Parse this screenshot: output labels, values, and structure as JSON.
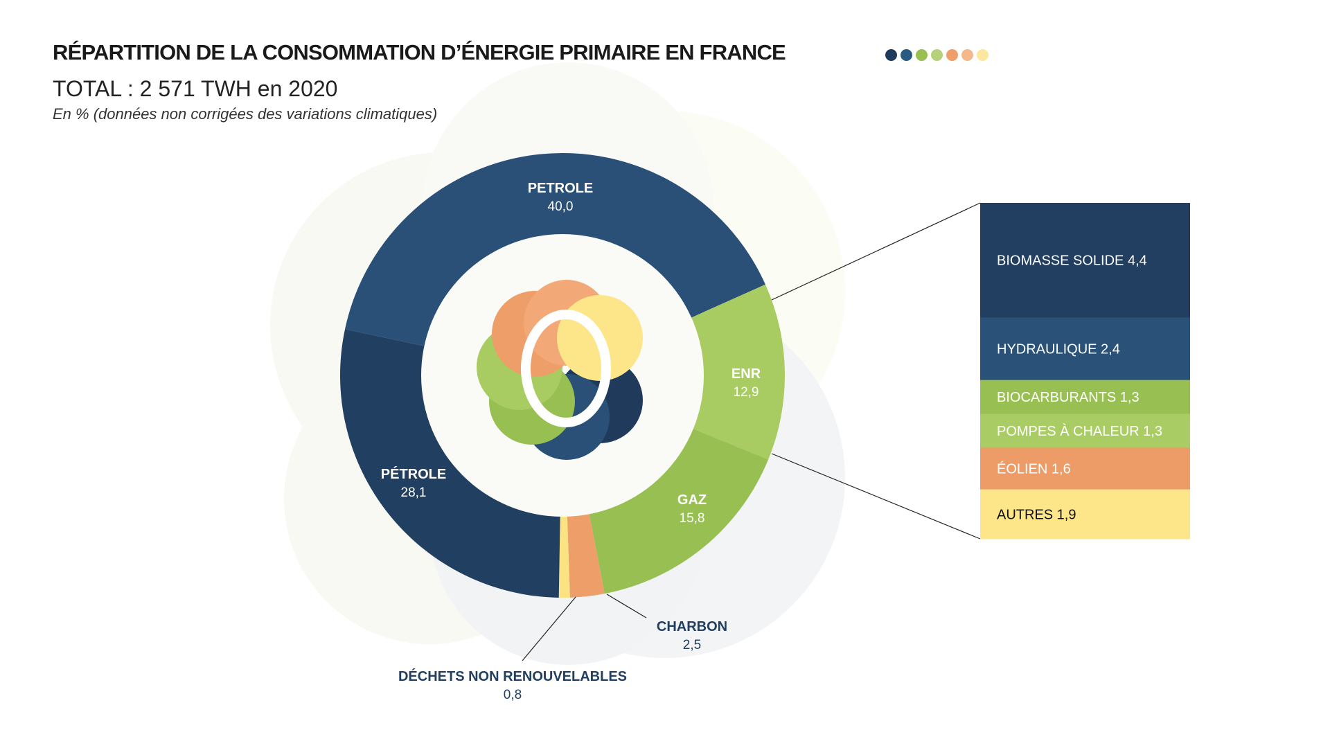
{
  "chart_data": {
    "type": "pie",
    "title": "RÉPARTITION DE LA CONSOMMATION D’ÉNERGIE PRIMAIRE EN FRANCE",
    "subtitle": "TOTAL : 2 571 TWH en 2020",
    "note": "En % (données non corrigées des variations climatiques)",
    "unit": "%",
    "slices": [
      {
        "label": "PETROLE",
        "value": "40,0",
        "v": 40.0,
        "color": "#2a5077"
      },
      {
        "label": "ENR",
        "value": "12,9",
        "v": 12.9,
        "color": "#a8cc62"
      },
      {
        "label": "GAZ",
        "value": "15,8",
        "v": 15.8,
        "color": "#97bf52"
      },
      {
        "label": "CHARBON",
        "value": "2,5",
        "v": 2.5,
        "color": "#ee9e68"
      },
      {
        "label": "DÉCHETS NON RENOUVELABLES",
        "value": "0,8",
        "v": 0.8,
        "color": "#fbe383"
      },
      {
        "label": "PÉTROLE",
        "value": "28,1",
        "v": 28.1,
        "color": "#213f60"
      }
    ],
    "breakdown_of": "ENR",
    "breakdown": [
      {
        "text": "BIOMASSE SOLIDE 4,4",
        "v": 4.4,
        "color": "#223f61",
        "textColor": "#ffffff"
      },
      {
        "text": "HYDRAULIQUE 2,4",
        "v": 2.4,
        "color": "#2a5177",
        "textColor": "#ffffff"
      },
      {
        "text": "BIOCARBURANTS 1,3",
        "v": 1.3,
        "color": "#98bf52",
        "textColor": "#ffffff"
      },
      {
        "text": "POMPES À CHALEUR 1,3",
        "v": 1.3,
        "color": "#a9cd64",
        "textColor": "#ffffff"
      },
      {
        "text": "ÉOLIEN 1,6",
        "v": 1.6,
        "color": "#ed9c68",
        "textColor": "#ffffff"
      },
      {
        "text": "AUTRES 1,9",
        "v": 1.9,
        "color": "#fde68a",
        "textColor": "#111111"
      }
    ],
    "legend_dots": [
      "#1f3a5a",
      "#2a5a80",
      "#97bf52",
      "#b5d27a",
      "#ee9e68",
      "#f3b98a",
      "#fbe7a0"
    ]
  }
}
